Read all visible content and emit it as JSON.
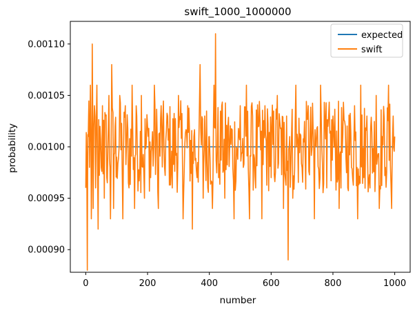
{
  "chart_data": {
    "type": "line",
    "title": "swift_1000_1000000",
    "xlabel": "number",
    "ylabel": "probability",
    "xlim": [
      -50,
      1050
    ],
    "ylim": [
      0.000878,
      0.001122
    ],
    "x_ticks": [
      0,
      200,
      400,
      600,
      800,
      1000
    ],
    "x_tick_labels": [
      "0",
      "200",
      "400",
      "600",
      "800",
      "1000"
    ],
    "y_ticks": [
      0.0009,
      0.00095,
      0.001,
      0.00105,
      0.0011
    ],
    "y_tick_labels": [
      "0.00090",
      "0.00095",
      "0.00100",
      "0.00105",
      "0.00110"
    ],
    "grid": false,
    "legend_position": "top-right",
    "x_range": [
      0,
      1000
    ],
    "series": [
      {
        "name": "expected",
        "color": "#1f77b4",
        "x": [
          0,
          1000
        ],
        "values": [
          0.001,
          0.001
        ]
      },
      {
        "name": "swift",
        "color": "#ff7f0e",
        "x": [
          0,
          5,
          8,
          12,
          15,
          18,
          21,
          24,
          28,
          32,
          36,
          40,
          46,
          50,
          54,
          60,
          64,
          68,
          75,
          80,
          84,
          90,
          95,
          100,
          110,
          120,
          128,
          140,
          150,
          158,
          165,
          175,
          180,
          190,
          200,
          210,
          222,
          235,
          244,
          255,
          265,
          280,
          300,
          315,
          330,
          345,
          350,
          360,
          370,
          380,
          385,
          395,
          400,
          410,
          415,
          420,
          430,
          440,
          450,
          460,
          480,
          500,
          510,
          520,
          530,
          540,
          550,
          560,
          570,
          580,
          600,
          620,
          640,
          650,
          655,
          660,
          670,
          680,
          700,
          720,
          740,
          760,
          780,
          800,
          820,
          840,
          860,
          870,
          880,
          890,
          900,
          910,
          920,
          940,
          950,
          960,
          970,
          980,
          990,
          995,
          1000
        ],
        "values": [
          0.00096,
          0.00088,
          0.00101,
          0.00098,
          0.00106,
          0.00093,
          0.0011,
          0.00094,
          0.00104,
          0.00096,
          0.00106,
          0.00092,
          0.00102,
          0.00098,
          0.00104,
          0.00095,
          0.00103,
          0.00097,
          0.00105,
          0.00093,
          0.00108,
          0.00094,
          0.00102,
          0.00099,
          0.00105,
          0.00093,
          0.00104,
          0.00096,
          0.00106,
          0.00094,
          0.00103,
          0.00098,
          0.00105,
          0.00095,
          0.00102,
          0.00097,
          0.00106,
          0.00094,
          0.00104,
          0.00098,
          0.00103,
          0.00096,
          0.00105,
          0.00093,
          0.00104,
          0.00092,
          0.00101,
          0.00097,
          0.00108,
          0.00095,
          0.00103,
          0.00096,
          0.00101,
          0.00094,
          0.00106,
          0.00111,
          0.00097,
          0.00104,
          0.00095,
          0.00102,
          0.00093,
          0.00104,
          0.00098,
          0.00106,
          0.00093,
          0.00103,
          0.00096,
          0.00102,
          0.00093,
          0.00104,
          0.00097,
          0.00105,
          0.00094,
          0.00103,
          0.00089,
          0.00101,
          0.00095,
          0.00106,
          0.00098,
          0.00104,
          0.00093,
          0.00106,
          0.00096,
          0.00103,
          0.00094,
          0.00102,
          0.00098,
          0.00104,
          0.00093,
          0.00106,
          0.00097,
          0.00103,
          0.00096,
          0.00105,
          0.00094,
          0.00101,
          0.00098,
          0.00106,
          0.00094,
          0.00103,
          0.00101
        ]
      }
    ]
  }
}
